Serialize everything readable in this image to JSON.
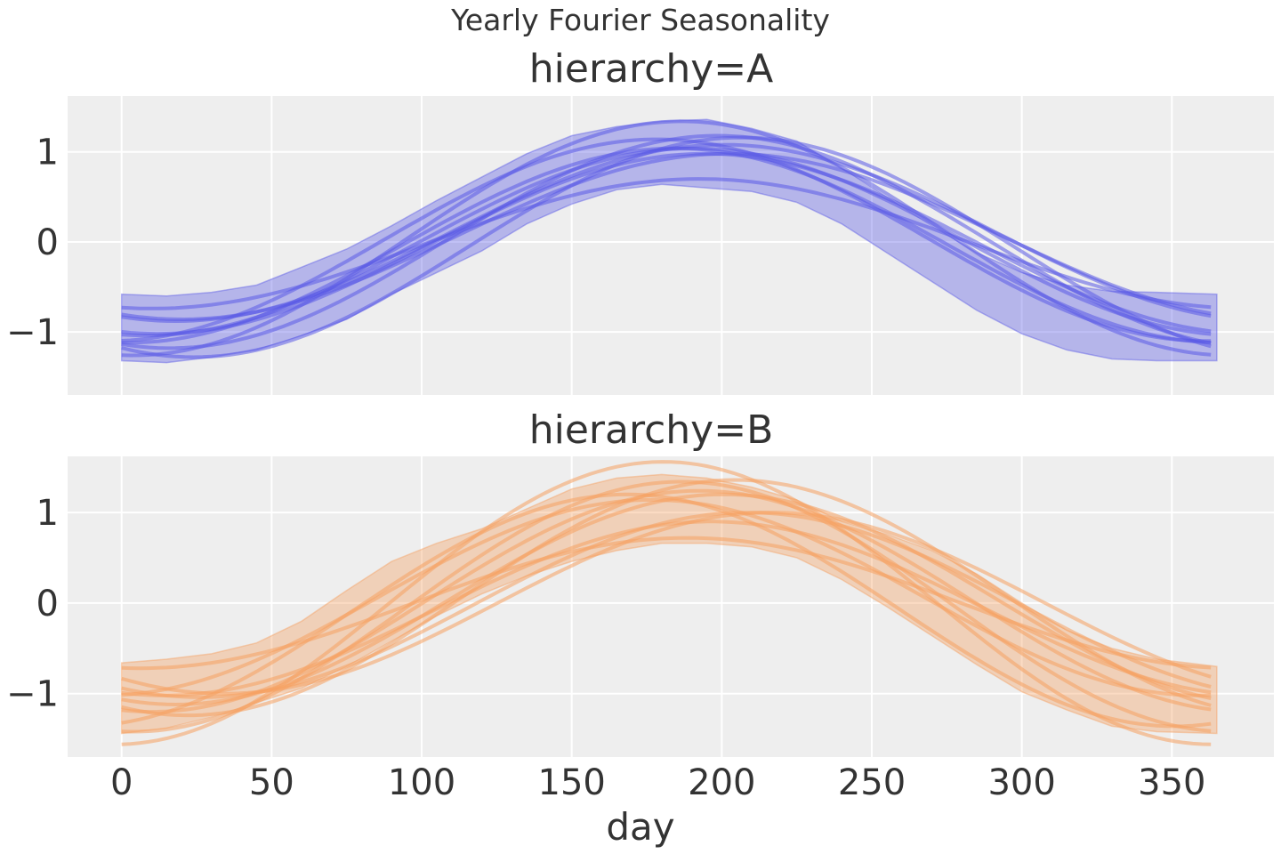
{
  "figure": {
    "suptitle": "Yearly Fourier Seasonality",
    "background": "#ffffff",
    "panel_background": "#eeeeee",
    "grid_color": "#ffffff",
    "sharex": true
  },
  "chart_data": [
    {
      "type": "line",
      "title": "hierarchy=A",
      "xlabel": "",
      "ylabel": "",
      "xlim": [
        -18,
        384
      ],
      "ylim": [
        -1.7,
        1.62
      ],
      "xticks": [
        0,
        50,
        100,
        150,
        200,
        250,
        300,
        350
      ],
      "xtick_labels": [],
      "yticks": [
        -1,
        0,
        1
      ],
      "ytick_labels": [
        "−1",
        "0",
        "1"
      ],
      "grid": true,
      "color": "#5a5ae6",
      "band": {
        "description": "posterior interval",
        "x": [
          0,
          15,
          30,
          45,
          60,
          75,
          90,
          105,
          120,
          135,
          150,
          165,
          180,
          195,
          210,
          225,
          240,
          255,
          270,
          285,
          300,
          315,
          330,
          345,
          365
        ],
        "upper": [
          -0.58,
          -0.6,
          -0.56,
          -0.48,
          -0.28,
          -0.08,
          0.18,
          0.46,
          0.72,
          0.98,
          1.18,
          1.28,
          1.34,
          1.36,
          1.26,
          1.12,
          0.82,
          0.5,
          0.18,
          -0.12,
          -0.34,
          -0.48,
          -0.55,
          -0.56,
          -0.58
        ],
        "lower": [
          -1.32,
          -1.34,
          -1.28,
          -1.2,
          -1.04,
          -0.86,
          -0.58,
          -0.34,
          -0.1,
          0.2,
          0.42,
          0.58,
          0.64,
          0.6,
          0.56,
          0.44,
          0.2,
          -0.12,
          -0.44,
          -0.76,
          -1.02,
          -1.2,
          -1.3,
          -1.32,
          -1.32
        ]
      },
      "samples": [
        {
          "amp": 1.04,
          "phase_day": 8,
          "level": 0.0
        },
        {
          "amp": 1.0,
          "phase_day": 12,
          "level": -0.02
        },
        {
          "amp": 1.18,
          "phase_day": 16,
          "level": 0.0
        },
        {
          "amp": 1.3,
          "phase_day": 4,
          "level": 0.04
        },
        {
          "amp": 0.92,
          "phase_day": 20,
          "level": 0.06
        },
        {
          "amp": 1.08,
          "phase_day": 2,
          "level": -0.04
        },
        {
          "amp": 0.72,
          "phase_day": 10,
          "level": -0.02
        },
        {
          "amp": 1.22,
          "phase_day": 24,
          "level": -0.06
        },
        {
          "amp": 1.12,
          "phase_day": -4,
          "level": 0.02
        },
        {
          "amp": 0.98,
          "phase_day": 18,
          "level": 0.1
        }
      ]
    },
    {
      "type": "line",
      "title": "hierarchy=B",
      "xlabel": "day",
      "ylabel": "",
      "xlim": [
        -18,
        384
      ],
      "ylim": [
        -1.7,
        1.62
      ],
      "xticks": [
        0,
        50,
        100,
        150,
        200,
        250,
        300,
        350
      ],
      "xtick_labels": [
        "0",
        "50",
        "100",
        "150",
        "200",
        "250",
        "300",
        "350"
      ],
      "yticks": [
        -1,
        0,
        1
      ],
      "ytick_labels": [
        "−1",
        "0",
        "1"
      ],
      "grid": true,
      "color": "#f5a061",
      "band": {
        "description": "posterior interval",
        "x": [
          0,
          15,
          30,
          45,
          60,
          75,
          90,
          105,
          120,
          135,
          150,
          165,
          180,
          195,
          210,
          225,
          240,
          255,
          270,
          285,
          300,
          315,
          330,
          345,
          365
        ],
        "upper": [
          -0.66,
          -0.62,
          -0.56,
          -0.44,
          -0.2,
          0.14,
          0.46,
          0.66,
          0.82,
          1.04,
          1.26,
          1.38,
          1.42,
          1.38,
          1.28,
          1.14,
          0.9,
          0.76,
          0.58,
          0.32,
          0.0,
          -0.3,
          -0.5,
          -0.62,
          -0.7
        ],
        "lower": [
          -1.44,
          -1.38,
          -1.26,
          -1.1,
          -0.94,
          -0.7,
          -0.42,
          -0.14,
          0.1,
          0.3,
          0.46,
          0.58,
          0.66,
          0.66,
          0.62,
          0.5,
          0.26,
          -0.04,
          -0.36,
          -0.68,
          -0.98,
          -1.18,
          -1.36,
          -1.42,
          -1.44
        ]
      },
      "samples": [
        {
          "amp": 1.28,
          "phase_day": -14,
          "level": -0.08
        },
        {
          "amp": 1.56,
          "phase_day": -2,
          "level": 0.0
        },
        {
          "amp": 1.22,
          "phase_day": 10,
          "level": 0.02
        },
        {
          "amp": 0.96,
          "phase_day": 14,
          "level": -0.06
        },
        {
          "amp": 1.08,
          "phase_day": -6,
          "level": 0.06
        },
        {
          "amp": 0.72,
          "phase_day": 6,
          "level": 0.0
        },
        {
          "amp": 1.38,
          "phase_day": 4,
          "level": -0.04
        },
        {
          "amp": 1.02,
          "phase_day": 26,
          "level": -0.02
        },
        {
          "amp": 1.16,
          "phase_day": 18,
          "level": 0.04
        },
        {
          "amp": 1.0,
          "phase_day": 34,
          "level": 0.0
        },
        {
          "amp": 1.3,
          "phase_day": 22,
          "level": 0.06
        }
      ]
    }
  ]
}
